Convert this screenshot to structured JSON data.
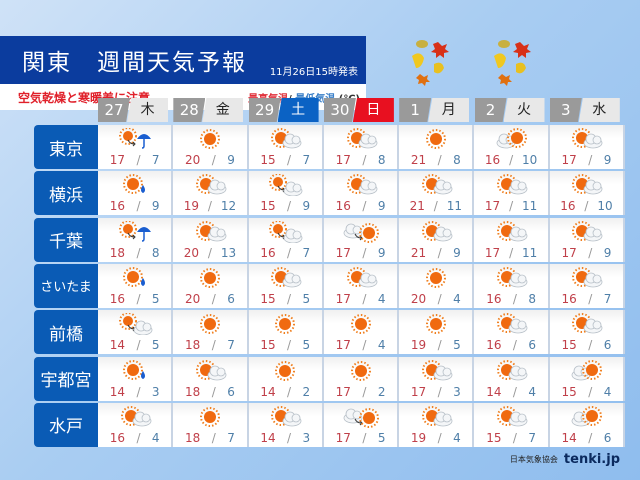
{
  "header": {
    "title": "関東　週間天気予報",
    "issued": "11月26日15時発表",
    "warning": "空気乾燥と寒暖差に注意",
    "legend_high": "最高気温",
    "legend_sep": "/",
    "legend_low": "最低気温",
    "legend_unit": "(℃)"
  },
  "days": [
    {
      "num": "27",
      "wk": "木",
      "type": "weekday"
    },
    {
      "num": "28",
      "wk": "金",
      "type": "weekday"
    },
    {
      "num": "29",
      "wk": "土",
      "type": "sat"
    },
    {
      "num": "30",
      "wk": "日",
      "type": "sun"
    },
    {
      "num": "1",
      "wk": "月",
      "type": "weekday"
    },
    {
      "num": "2",
      "wk": "火",
      "type": "weekday"
    },
    {
      "num": "3",
      "wk": "水",
      "type": "weekday"
    }
  ],
  "cities": [
    {
      "name": "東京",
      "cells": [
        {
          "icon": "sun-then-rain",
          "hi": "17",
          "lo": "7"
        },
        {
          "icon": "sun",
          "hi": "20",
          "lo": "9"
        },
        {
          "icon": "sun-cloud",
          "hi": "15",
          "lo": "7"
        },
        {
          "icon": "sun-cloud",
          "hi": "17",
          "lo": "8"
        },
        {
          "icon": "sun",
          "hi": "21",
          "lo": "8"
        },
        {
          "icon": "cloud-sun",
          "hi": "16",
          "lo": "10"
        },
        {
          "icon": "sun-cloud",
          "hi": "17",
          "lo": "9"
        }
      ]
    },
    {
      "name": "横浜",
      "cells": [
        {
          "icon": "sun-drop",
          "hi": "16",
          "lo": "9"
        },
        {
          "icon": "sun-cloud",
          "hi": "19",
          "lo": "12"
        },
        {
          "icon": "sun-then-cloud",
          "hi": "15",
          "lo": "9"
        },
        {
          "icon": "sun-cloud",
          "hi": "16",
          "lo": "9"
        },
        {
          "icon": "sun-cloud",
          "hi": "21",
          "lo": "11"
        },
        {
          "icon": "sun-cloud",
          "hi": "17",
          "lo": "11"
        },
        {
          "icon": "sun-cloud",
          "hi": "16",
          "lo": "10"
        }
      ]
    },
    {
      "name": "千葉",
      "cells": [
        {
          "icon": "sun-then-rain",
          "hi": "18",
          "lo": "8"
        },
        {
          "icon": "sun-cloud",
          "hi": "20",
          "lo": "13"
        },
        {
          "icon": "sun-then-cloud",
          "hi": "16",
          "lo": "7"
        },
        {
          "icon": "cloud-then-sun",
          "hi": "17",
          "lo": "9"
        },
        {
          "icon": "sun-cloud",
          "hi": "21",
          "lo": "9"
        },
        {
          "icon": "sun-cloud",
          "hi": "17",
          "lo": "11"
        },
        {
          "icon": "sun-cloud",
          "hi": "17",
          "lo": "9"
        }
      ]
    },
    {
      "name": "さいたま",
      "cells": [
        {
          "icon": "sun-drop",
          "hi": "16",
          "lo": "5"
        },
        {
          "icon": "sun",
          "hi": "20",
          "lo": "6"
        },
        {
          "icon": "sun-cloud",
          "hi": "15",
          "lo": "5"
        },
        {
          "icon": "sun-cloud",
          "hi": "17",
          "lo": "4"
        },
        {
          "icon": "sun",
          "hi": "20",
          "lo": "4"
        },
        {
          "icon": "sun-cloud",
          "hi": "16",
          "lo": "8"
        },
        {
          "icon": "sun-cloud",
          "hi": "16",
          "lo": "7"
        }
      ]
    },
    {
      "name": "前橋",
      "cells": [
        {
          "icon": "sun-then-cloud",
          "hi": "14",
          "lo": "5"
        },
        {
          "icon": "sun",
          "hi": "18",
          "lo": "7"
        },
        {
          "icon": "sun",
          "hi": "15",
          "lo": "5"
        },
        {
          "icon": "sun",
          "hi": "17",
          "lo": "4"
        },
        {
          "icon": "sun",
          "hi": "19",
          "lo": "5"
        },
        {
          "icon": "sun-cloud",
          "hi": "16",
          "lo": "6"
        },
        {
          "icon": "sun-cloud",
          "hi": "15",
          "lo": "6"
        }
      ]
    },
    {
      "name": "宇都宮",
      "cells": [
        {
          "icon": "sun-drop",
          "hi": "14",
          "lo": "3"
        },
        {
          "icon": "sun-cloud",
          "hi": "18",
          "lo": "6"
        },
        {
          "icon": "sun",
          "hi": "14",
          "lo": "2"
        },
        {
          "icon": "sun",
          "hi": "17",
          "lo": "2"
        },
        {
          "icon": "sun-cloud",
          "hi": "17",
          "lo": "3"
        },
        {
          "icon": "sun-cloud",
          "hi": "14",
          "lo": "4"
        },
        {
          "icon": "cloud-sun",
          "hi": "15",
          "lo": "4"
        }
      ]
    },
    {
      "name": "水戸",
      "cells": [
        {
          "icon": "sun-cloud",
          "hi": "16",
          "lo": "4"
        },
        {
          "icon": "sun",
          "hi": "18",
          "lo": "7"
        },
        {
          "icon": "sun-cloud",
          "hi": "14",
          "lo": "3"
        },
        {
          "icon": "cloud-then-sun",
          "hi": "17",
          "lo": "5"
        },
        {
          "icon": "sun-cloud",
          "hi": "19",
          "lo": "4"
        },
        {
          "icon": "sun-cloud",
          "hi": "15",
          "lo": "7"
        },
        {
          "icon": "cloud-sun",
          "hi": "14",
          "lo": "6"
        }
      ]
    }
  ],
  "footer": {
    "org": "日本気象協会",
    "brand": "tenki.jp"
  },
  "colors": {
    "title_bg": "#0b3c9e",
    "city_bg": "#0a5bb5",
    "high": "#c0404a",
    "low": "#4f7fa8",
    "saturday": "#0b62c4",
    "sunday": "#e81020"
  }
}
